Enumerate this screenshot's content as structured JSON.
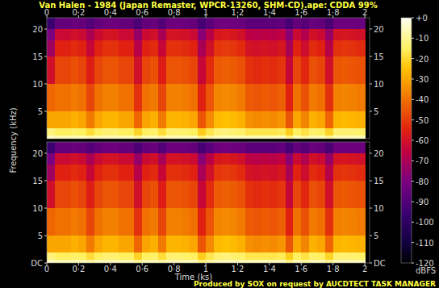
{
  "chart_data": {
    "type": "heatmap",
    "title": "Van Halen - 1984 (Japan Remaster, WPCR-13260, SHM-CD).ape: CDDA 99%",
    "xlabel": "Time (ks)",
    "ylabel": "Frequency (kHz)",
    "xlim": [
      0,
      2.03
    ],
    "xticks": [
      0,
      {
        "value": 0.2,
        "label": "0·2"
      },
      {
        "value": 0.4,
        "label": "0·4"
      },
      {
        "value": 0.6,
        "label": "0·6"
      },
      {
        "value": 0.8,
        "label": "0·8"
      },
      1,
      {
        "value": 1.2,
        "label": "1·2"
      },
      {
        "value": 1.4,
        "label": "1·4"
      },
      {
        "value": 1.6,
        "label": "1·6"
      },
      {
        "value": 1.8,
        "label": "1·8"
      },
      2
    ],
    "ylim": [
      0,
      22.05
    ],
    "x_bins": [
      0,
      0.05,
      0.1,
      0.15,
      0.2,
      0.25,
      0.3,
      0.35,
      0.4,
      0.45,
      0.5,
      0.55,
      0.6,
      0.65,
      0.7,
      0.75,
      0.8,
      0.85,
      0.9,
      0.95,
      1,
      1.05,
      1.1,
      1.15,
      1.2,
      1.25,
      1.3,
      1.35,
      1.4,
      1.45,
      1.5,
      1.55,
      1.6,
      1.65,
      1.7,
      1.75,
      1.8,
      1.85,
      1.9,
      1.95,
      2
    ],
    "y_bins": [
      0,
      0.6,
      2,
      5,
      10,
      15,
      18,
      20,
      22.05
    ],
    "channels": [
      {
        "yticks": [
          5,
          10,
          15,
          20
        ],
        "cells": [
          [
            -5,
            -6,
            -6,
            -6,
            -6,
            -8,
            -6,
            -6,
            -6,
            -6,
            -6,
            -10,
            -6,
            -6,
            -8,
            -6,
            -6,
            -6,
            -6,
            -12,
            -8,
            -6,
            -6,
            -6,
            -6,
            -6,
            -6,
            -6,
            -6,
            -6,
            -12,
            -6,
            -9,
            -6,
            -6,
            -10,
            -6,
            -6,
            -6,
            -6
          ],
          [
            -12,
            -15,
            -15,
            -14,
            -15,
            -19,
            -15,
            -13,
            -13,
            -15,
            -15,
            -21,
            -15,
            -14,
            -19,
            -13,
            -13,
            -14,
            -15,
            -22,
            -17,
            -13,
            -12,
            -13,
            -14,
            -17,
            -17,
            -17,
            -17,
            -16,
            -22,
            -15,
            -18,
            -14,
            -15,
            -21,
            -13,
            -13,
            -13,
            -14
          ],
          [
            -30,
            -30,
            -30,
            -28,
            -30,
            -38,
            -30,
            -27,
            -27,
            -30,
            -30,
            -42,
            -30,
            -28,
            -38,
            -27,
            -27,
            -28,
            -30,
            -45,
            -35,
            -26,
            -25,
            -26,
            -28,
            -34,
            -35,
            -34,
            -35,
            -33,
            -45,
            -30,
            -36,
            -28,
            -30,
            -42,
            -27,
            -26,
            -27,
            -28
          ],
          [
            -42,
            -40,
            -40,
            -38,
            -40,
            -48,
            -40,
            -37,
            -37,
            -40,
            -40,
            -52,
            -40,
            -38,
            -48,
            -37,
            -37,
            -38,
            -40,
            -55,
            -45,
            -36,
            -35,
            -36,
            -38,
            -44,
            -45,
            -44,
            -45,
            -43,
            -55,
            -40,
            -46,
            -38,
            -40,
            -52,
            -37,
            -36,
            -37,
            -38
          ],
          [
            -60,
            -48,
            -48,
            -46,
            -48,
            -56,
            -48,
            -45,
            -45,
            -48,
            -48,
            -60,
            -48,
            -46,
            -56,
            -45,
            -45,
            -46,
            -48,
            -63,
            -53,
            -44,
            -43,
            -44,
            -46,
            -52,
            -53,
            -52,
            -53,
            -51,
            -63,
            -48,
            -54,
            -46,
            -48,
            -60,
            -45,
            -44,
            -45,
            -46
          ],
          [
            -72,
            -55,
            -55,
            -53,
            -55,
            -63,
            -55,
            -52,
            -52,
            -55,
            -55,
            -67,
            -55,
            -53,
            -63,
            -52,
            -52,
            -53,
            -55,
            -70,
            -60,
            -51,
            -50,
            -51,
            -53,
            -59,
            -60,
            -59,
            -60,
            -58,
            -70,
            -55,
            -61,
            -53,
            -55,
            -67,
            -52,
            -51,
            -52,
            -53
          ],
          [
            -80,
            -62,
            -62,
            -60,
            -62,
            -70,
            -62,
            -59,
            -59,
            -62,
            -62,
            -74,
            -62,
            -60,
            -70,
            -59,
            -59,
            -60,
            -62,
            -77,
            -67,
            -58,
            -57,
            -58,
            -60,
            -66,
            -67,
            -66,
            -67,
            -65,
            -77,
            -62,
            -68,
            -60,
            -62,
            -74,
            -59,
            -58,
            -59,
            -60
          ],
          [
            -95,
            -85,
            -85,
            -84,
            -85,
            -89,
            -85,
            -83,
            -83,
            -85,
            -85,
            -91,
            -85,
            -84,
            -89,
            -83,
            -83,
            -84,
            -85,
            -92,
            -87,
            -83,
            -82,
            -83,
            -84,
            -87,
            -87,
            -87,
            -87,
            -86,
            -92,
            -85,
            -88,
            -84,
            -85,
            -91,
            -83,
            -83,
            -83,
            -84
          ]
        ]
      },
      {
        "yticks": [
          {
            "value": 0,
            "label": "DC"
          },
          5,
          10,
          15,
          20
        ],
        "cells": [
          [
            -5,
            -6,
            -6,
            -6,
            -6,
            -8,
            -6,
            -6,
            -6,
            -6,
            -6,
            -10,
            -6,
            -6,
            -8,
            -6,
            -6,
            -6,
            -6,
            -12,
            -8,
            -6,
            -6,
            -6,
            -6,
            -6,
            -6,
            -6,
            -6,
            -6,
            -12,
            -6,
            -9,
            -6,
            -6,
            -10,
            -6,
            -6,
            -6,
            -6
          ],
          [
            -12,
            -15,
            -15,
            -14,
            -15,
            -19,
            -15,
            -13,
            -13,
            -15,
            -15,
            -21,
            -15,
            -14,
            -19,
            -13,
            -13,
            -14,
            -15,
            -22,
            -17,
            -13,
            -12,
            -13,
            -14,
            -17,
            -17,
            -17,
            -17,
            -16,
            -22,
            -15,
            -18,
            -14,
            -15,
            -21,
            -13,
            -13,
            -13,
            -14
          ],
          [
            -30,
            -30,
            -30,
            -28,
            -30,
            -38,
            -30,
            -27,
            -27,
            -30,
            -30,
            -42,
            -30,
            -28,
            -38,
            -27,
            -27,
            -28,
            -30,
            -45,
            -35,
            -26,
            -25,
            -26,
            -28,
            -34,
            -35,
            -34,
            -35,
            -33,
            -45,
            -30,
            -36,
            -28,
            -30,
            -42,
            -27,
            -26,
            -27,
            -28
          ],
          [
            -42,
            -40,
            -40,
            -38,
            -40,
            -48,
            -40,
            -37,
            -37,
            -40,
            -40,
            -52,
            -40,
            -38,
            -48,
            -37,
            -37,
            -38,
            -40,
            -55,
            -45,
            -36,
            -35,
            -36,
            -38,
            -44,
            -45,
            -44,
            -45,
            -43,
            -55,
            -40,
            -46,
            -38,
            -40,
            -52,
            -37,
            -36,
            -37,
            -38
          ],
          [
            -60,
            -48,
            -48,
            -46,
            -48,
            -56,
            -48,
            -45,
            -45,
            -48,
            -48,
            -60,
            -48,
            -46,
            -56,
            -45,
            -45,
            -46,
            -48,
            -63,
            -53,
            -44,
            -43,
            -44,
            -46,
            -52,
            -53,
            -52,
            -53,
            -51,
            -63,
            -48,
            -54,
            -46,
            -48,
            -60,
            -45,
            -44,
            -45,
            -46
          ],
          [
            -72,
            -55,
            -55,
            -53,
            -55,
            -63,
            -55,
            -52,
            -52,
            -55,
            -55,
            -67,
            -55,
            -53,
            -63,
            -52,
            -52,
            -53,
            -55,
            -70,
            -60,
            -51,
            -50,
            -51,
            -53,
            -59,
            -60,
            -59,
            -60,
            -58,
            -70,
            -55,
            -61,
            -53,
            -55,
            -67,
            -52,
            -51,
            -52,
            -53
          ],
          [
            -80,
            -62,
            -62,
            -60,
            -62,
            -70,
            -62,
            -59,
            -59,
            -62,
            -62,
            -74,
            -62,
            -60,
            -70,
            -59,
            -59,
            -60,
            -62,
            -77,
            -67,
            -58,
            -57,
            -58,
            -60,
            -66,
            -67,
            -66,
            -67,
            -65,
            -77,
            -62,
            -68,
            -60,
            -62,
            -74,
            -59,
            -58,
            -59,
            -60
          ],
          [
            -95,
            -85,
            -85,
            -84,
            -85,
            -89,
            -85,
            -83,
            -83,
            -85,
            -85,
            -91,
            -85,
            -84,
            -89,
            -83,
            -83,
            -84,
            -85,
            -92,
            -87,
            -83,
            -82,
            -83,
            -84,
            -87,
            -87,
            -87,
            -87,
            -86,
            -92,
            -85,
            -88,
            -84,
            -85,
            -91,
            -83,
            -83,
            -83,
            -84
          ]
        ]
      }
    ],
    "colorbar": {
      "range": [
        -120,
        0
      ],
      "ticks": [
        {
          "value": 0,
          "label": "+0"
        },
        -10,
        -20,
        -30,
        -40,
        -50,
        -60,
        -70,
        -80,
        -90,
        -100,
        -110,
        -120
      ],
      "label": "dBFS"
    },
    "footer": "Produced by SOX on request by AUCDTECT TASK MANAGER"
  }
}
